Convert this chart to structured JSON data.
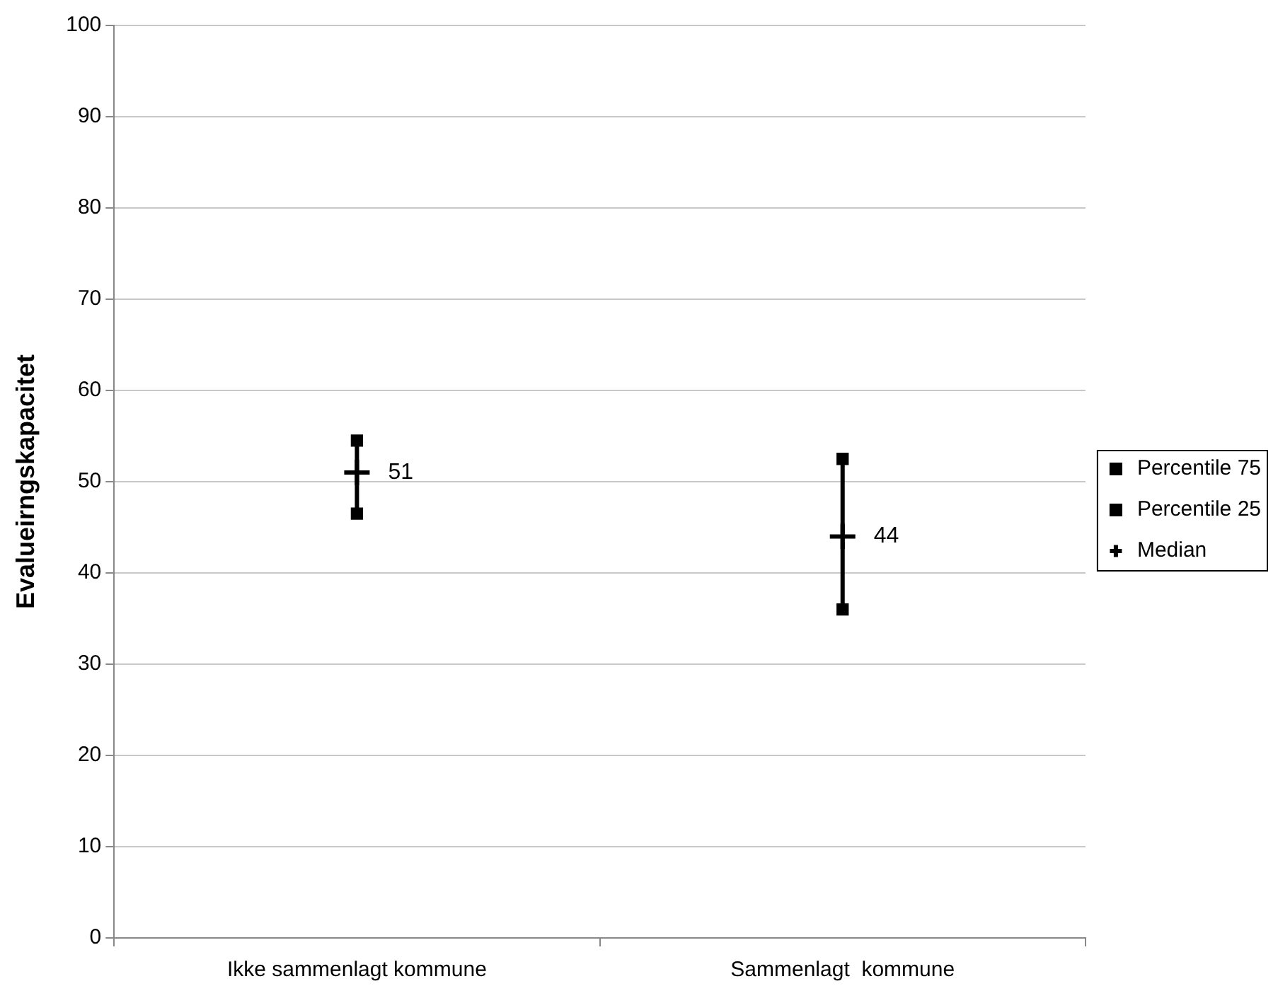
{
  "chart_data": {
    "type": "scatter",
    "ylabel": "Evalueirngskapacitet",
    "categories": [
      "Ikke sammenlagt kommune",
      "Sammenlagt  kommune"
    ],
    "series": [
      {
        "name": "Percentile 75",
        "color": "#000000",
        "values": [
          54.5,
          52.5
        ],
        "marker": "square"
      },
      {
        "name": "Percentile 25",
        "color": "#000000",
        "values": [
          46.5,
          36
        ],
        "marker": "square"
      },
      {
        "name": "Median",
        "color": "#000000",
        "values": [
          51,
          44
        ],
        "marker": "cross",
        "value_labels": [
          "51",
          "44"
        ]
      }
    ],
    "ylim": [
      0,
      100
    ],
    "yticks": [
      0,
      10,
      20,
      30,
      40,
      50,
      60,
      70,
      80,
      90,
      100
    ],
    "grid": "y",
    "legend": "right"
  }
}
